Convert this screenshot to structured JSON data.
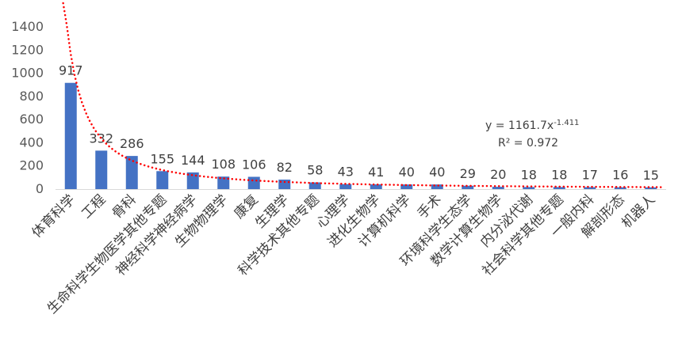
{
  "chart_data": {
    "type": "bar",
    "categories": [
      "体育科学",
      "工程",
      "骨科",
      "生命科学生物医学其他专题",
      "神经科学神经病学",
      "生物物理学",
      "康复",
      "生理学",
      "科学技术其他专题",
      "心理学",
      "进化生物学",
      "计算机科学",
      "手术",
      "环境科学生态学",
      "数学计算生物学",
      "内分泌代谢",
      "社会科学其他专题",
      "一般内科",
      "解剖形态",
      "机器人"
    ],
    "values": [
      917,
      332,
      286,
      155,
      144,
      108,
      106,
      82,
      58,
      43,
      41,
      40,
      40,
      29,
      20,
      18,
      18,
      17,
      16,
      15
    ],
    "ylim": [
      0,
      1400
    ],
    "yticks": [
      0,
      200,
      400,
      600,
      800,
      1000,
      1200,
      1400
    ],
    "grid": false,
    "bar_color": "#4472C4",
    "trendline": {
      "type": "power",
      "coefficient": 1161.7,
      "exponent": -1.411,
      "color": "#FF0000",
      "equation_prefix": "y = 1161.7x",
      "equation_exponent": "-1.411",
      "r_squared_label": "R² = 0.972"
    }
  }
}
